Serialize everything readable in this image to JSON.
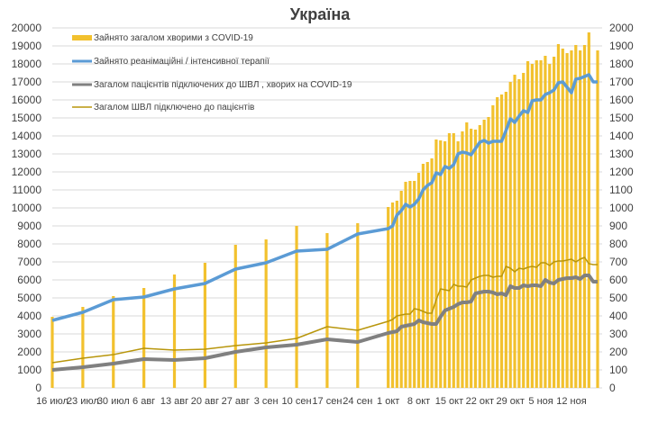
{
  "chart_data": {
    "type": "bar+line",
    "title": "Україна",
    "colors": {
      "bars": "#f2c12e",
      "icu": "#5b9bd5",
      "vent_covid": "#808080",
      "vent_total": "#b8960c",
      "grid": "#d9d9d9"
    },
    "left_axis": {
      "ylim": [
        0,
        20000
      ],
      "step": 1000
    },
    "right_axis": {
      "ylim": [
        0,
        2000
      ],
      "step": 100
    },
    "grid": true,
    "legend_placement": "top-left",
    "x_ticks": [
      "16 июл",
      "23 июл",
      "30 июл",
      "6 авг",
      "13 авг",
      "20 авг",
      "27 авг",
      "3 сен",
      "10 сен",
      "17 сен",
      "24 сен",
      "1 окт",
      "8 окт",
      "15 окт",
      "22 окт",
      "29 окт",
      "5 ноя",
      "12 ноя"
    ],
    "x_tick_dates": [
      "16.07",
      "23.07",
      "30.07",
      "06.08",
      "13.08",
      "20.08",
      "27.08",
      "03.09",
      "10.09",
      "17.09",
      "24.09",
      "01.10",
      "08.10",
      "15.10",
      "22.10",
      "29.10",
      "05.11",
      "12.11"
    ],
    "dates": [
      "16.07",
      "23.07",
      "30.07",
      "06.08",
      "13.08",
      "20.08",
      "27.08",
      "03.09",
      "10.09",
      "17.09",
      "24.09",
      "01.10",
      "02.10",
      "03.10",
      "04.10",
      "05.10",
      "06.10",
      "07.10",
      "08.10",
      "09.10",
      "10.10",
      "11.10",
      "12.10",
      "13.10",
      "14.10",
      "15.10",
      "16.10",
      "17.10",
      "18.10",
      "19.10",
      "20.10",
      "21.10",
      "22.10",
      "23.10",
      "24.10",
      "25.10",
      "26.10",
      "27.10",
      "28.10",
      "29.10",
      "30.10",
      "31.10",
      "01.11",
      "02.11",
      "03.11",
      "04.11",
      "05.11",
      "06.11",
      "07.11",
      "08.11",
      "09.11",
      "10.11",
      "11.11",
      "12.11",
      "13.11",
      "14.11",
      "15.11",
      "16.11",
      "17.11",
      "18.11"
    ],
    "series": [
      {
        "name": "Зайнято загалом хворими з COVID-19",
        "kind": "bar",
        "axis": "left",
        "values": [
          3950,
          4500,
          5100,
          5550,
          6300,
          6950,
          7950,
          8250,
          9000,
          8600,
          9150,
          10050,
          10300,
          10400,
          10950,
          11450,
          11500,
          11500,
          11950,
          12450,
          12550,
          12750,
          13800,
          13750,
          13700,
          14150,
          14150,
          13700,
          14250,
          14750,
          14400,
          14350,
          14600,
          14900,
          15050,
          15700,
          16150,
          16300,
          16450,
          17000,
          17400,
          17150,
          17500,
          18150,
          18000,
          18200,
          18200,
          18450,
          18000,
          18400,
          19100,
          18850,
          18600,
          18750,
          19050,
          18750,
          19050,
          19750,
          null,
          18750
        ]
      },
      {
        "name": "Зайнято реанімаційні / інтенсивної терапії",
        "kind": "line",
        "axis": "right",
        "values": [
          375,
          420,
          490,
          505,
          550,
          580,
          660,
          695,
          760,
          770,
          855,
          885,
          900,
          960,
          985,
          1020,
          1005,
          1020,
          1050,
          1100,
          1125,
          1140,
          1195,
          1185,
          1230,
          1220,
          1240,
          1300,
          1310,
          1305,
          1295,
          1330,
          1365,
          1375,
          1360,
          1370,
          1370,
          1370,
          1430,
          1495,
          1475,
          1510,
          1540,
          1530,
          1595,
          1600,
          1600,
          1630,
          1640,
          1655,
          1695,
          1700,
          1670,
          1640,
          1715,
          1720,
          1730,
          1740,
          1700,
          1700
        ]
      },
      {
        "name": "Загалом пацієнтів підключених до ШВЛ , хворих на COVID-19",
        "kind": "line",
        "axis": "right",
        "values": [
          100,
          115,
          135,
          160,
          155,
          165,
          200,
          225,
          240,
          270,
          255,
          305,
          310,
          315,
          340,
          345,
          350,
          355,
          375,
          365,
          360,
          355,
          355,
          395,
          430,
          440,
          450,
          465,
          475,
          475,
          480,
          525,
          530,
          535,
          535,
          530,
          520,
          525,
          515,
          565,
          555,
          555,
          570,
          565,
          570,
          570,
          565,
          600,
          585,
          580,
          600,
          605,
          610,
          610,
          615,
          605,
          625,
          625,
          590,
          590
        ]
      },
      {
        "name": "Загалом ШВЛ  підключено до пацієнтів",
        "kind": "line",
        "axis": "right",
        "values": [
          140,
          165,
          185,
          220,
          210,
          215,
          235,
          250,
          275,
          340,
          320,
          370,
          380,
          400,
          405,
          410,
          410,
          440,
          435,
          425,
          415,
          415,
          490,
          550,
          545,
          540,
          575,
          565,
          565,
          560,
          600,
          610,
          620,
          625,
          625,
          615,
          620,
          620,
          675,
          665,
          645,
          665,
          660,
          670,
          675,
          670,
          695,
          695,
          680,
          700,
          705,
          705,
          710,
          715,
          700,
          715,
          725,
          690,
          685,
          685
        ]
      }
    ]
  }
}
